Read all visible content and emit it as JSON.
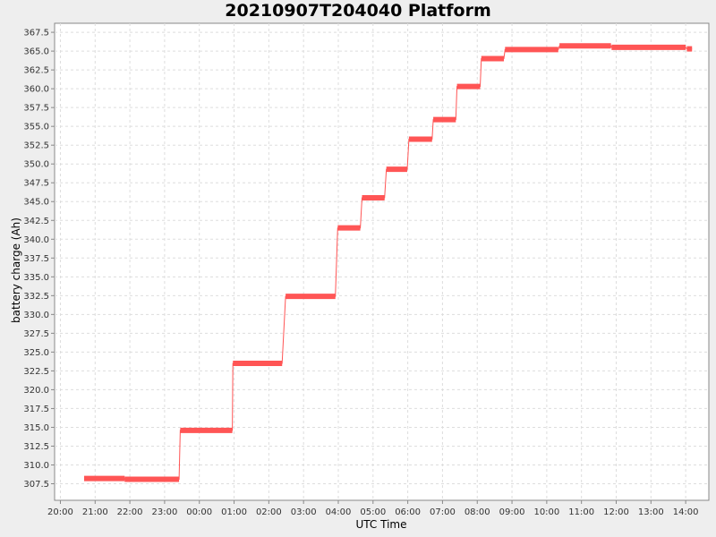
{
  "chart_data": {
    "type": "line",
    "title": "20210907T204040 Platform",
    "xlabel": "UTC Time",
    "ylabel": "battery charge (Ah)",
    "x_ticks": [
      "20:00",
      "21:00",
      "22:00",
      "23:00",
      "00:00",
      "01:00",
      "02:00",
      "03:00",
      "04:00",
      "05:00",
      "06:00",
      "07:00",
      "08:00",
      "09:00",
      "10:00",
      "11:00",
      "12:00",
      "13:00",
      "14:00"
    ],
    "y_ticks": [
      "307.5",
      "310.0",
      "312.5",
      "315.0",
      "317.5",
      "320.0",
      "322.5",
      "325.0",
      "327.5",
      "330.0",
      "332.5",
      "335.0",
      "337.5",
      "340.0",
      "342.5",
      "345.0",
      "347.5",
      "350.0",
      "352.5",
      "355.0",
      "357.5",
      "360.0",
      "362.5",
      "365.0",
      "367.5"
    ],
    "xlim": [
      "2021-09-07T19:50:00Z",
      "2021-09-08T14:40:00Z"
    ],
    "ylim": [
      305.3,
      368.7
    ],
    "grid": true,
    "line_color": "#ff5555",
    "series": [
      {
        "points": [
          {
            "x": "2021-09-07T20:41:00Z",
            "y": 308.2
          },
          {
            "x": "2021-09-07T21:51:00Z",
            "y": 308.2
          },
          {
            "x": "2021-09-07T21:51:00Z",
            "y": 308.1
          },
          {
            "x": "2021-09-07T23:25:00Z",
            "y": 308.1
          },
          {
            "x": "2021-09-07T23:27:00Z",
            "y": 314.6
          },
          {
            "x": "2021-09-08T00:57:00Z",
            "y": 314.6
          },
          {
            "x": "2021-09-08T00:58:00Z",
            "y": 323.5
          },
          {
            "x": "2021-09-08T02:23:00Z",
            "y": 323.5
          },
          {
            "x": "2021-09-08T02:29:00Z",
            "y": 332.4
          },
          {
            "x": "2021-09-08T03:55:00Z",
            "y": 332.4
          },
          {
            "x": "2021-09-08T03:59:00Z",
            "y": 341.5
          },
          {
            "x": "2021-09-08T04:38:00Z",
            "y": 341.5
          },
          {
            "x": "2021-09-08T04:41:00Z",
            "y": 345.5
          },
          {
            "x": "2021-09-08T05:20:00Z",
            "y": 345.5
          },
          {
            "x": "2021-09-08T05:23:00Z",
            "y": 349.3
          },
          {
            "x": "2021-09-08T05:59:00Z",
            "y": 349.3
          },
          {
            "x": "2021-09-08T06:02:00Z",
            "y": 353.3
          },
          {
            "x": "2021-09-08T06:42:00Z",
            "y": 353.3
          },
          {
            "x": "2021-09-08T06:44:00Z",
            "y": 355.9
          },
          {
            "x": "2021-09-08T07:23:00Z",
            "y": 355.9
          },
          {
            "x": "2021-09-08T07:25:00Z",
            "y": 360.3
          },
          {
            "x": "2021-09-08T08:05:00Z",
            "y": 360.3
          },
          {
            "x": "2021-09-08T08:07:00Z",
            "y": 364.0
          },
          {
            "x": "2021-09-08T08:46:00Z",
            "y": 364.0
          },
          {
            "x": "2021-09-08T08:48:00Z",
            "y": 365.2
          },
          {
            "x": "2021-09-08T10:20:00Z",
            "y": 365.2
          },
          {
            "x": "2021-09-08T10:22:00Z",
            "y": 365.7
          },
          {
            "x": "2021-09-08T11:51:00Z",
            "y": 365.7
          },
          {
            "x": "2021-09-08T11:52:00Z",
            "y": 365.5
          },
          {
            "x": "2021-09-08T14:00:00Z",
            "y": 365.5
          },
          {
            "x": "2021-09-08T14:02:00Z",
            "y": 365.3
          },
          {
            "x": "2021-09-08T14:11:00Z",
            "y": 365.3
          }
        ]
      }
    ]
  }
}
